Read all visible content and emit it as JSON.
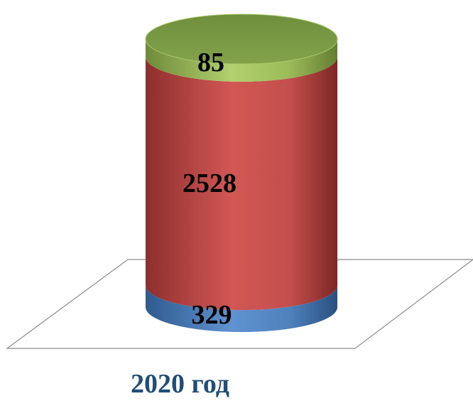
{
  "chart_data": {
    "type": "bar",
    "stacked": true,
    "style": "3d-cylinder",
    "categories": [
      "2020 год"
    ],
    "series": [
      {
        "values": [
          329
        ],
        "color": "#4f81bd"
      },
      {
        "values": [
          2528
        ],
        "color": "#c0504d"
      },
      {
        "values": [
          85
        ],
        "color": "#9bbb59"
      }
    ],
    "data_labels": [
      "329",
      "2528",
      "85"
    ],
    "xlabel": "2020 год",
    "legend": "none",
    "grid": false
  }
}
